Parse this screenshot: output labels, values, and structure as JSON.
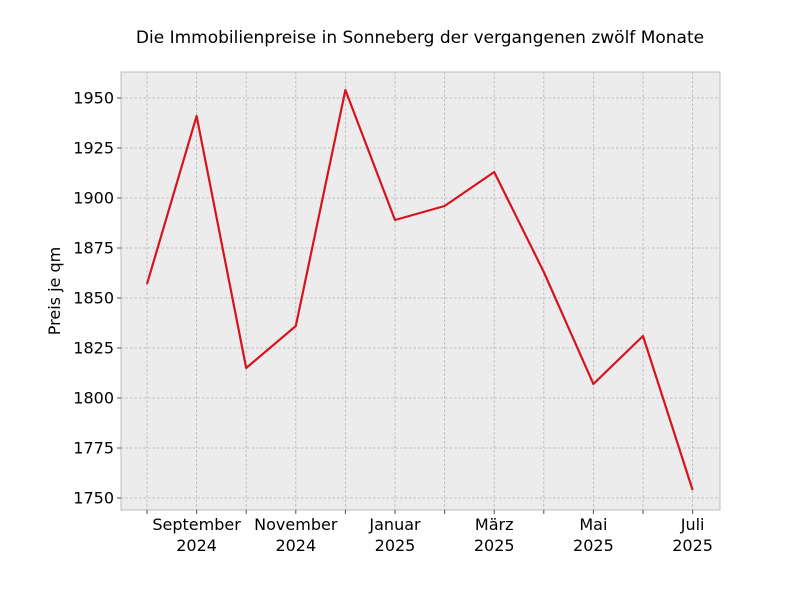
{
  "chart_data": {
    "type": "line",
    "title": "Die Immobilienpreise in Sonneberg der vergangenen zwölf Monate",
    "xlabel": "",
    "ylabel": "Preis je qm",
    "x": [
      "2024-08",
      "2024-09",
      "2024-10",
      "2024-11",
      "2024-12",
      "2025-01",
      "2025-02",
      "2025-03",
      "2025-04",
      "2025-05",
      "2025-06",
      "2025-07"
    ],
    "xticks": [
      {
        "x": "2024-09",
        "line1": "September",
        "line2": "2024"
      },
      {
        "x": "2024-11",
        "line1": "November",
        "line2": "2024"
      },
      {
        "x": "2025-01",
        "line1": "Januar",
        "line2": "2025"
      },
      {
        "x": "2025-03",
        "line1": "März",
        "line2": "2025"
      },
      {
        "x": "2025-05",
        "line1": "Mai",
        "line2": "2025"
      },
      {
        "x": "2025-07",
        "line1": "Juli",
        "line2": "2025"
      }
    ],
    "yticks": [
      1750,
      1775,
      1800,
      1825,
      1850,
      1875,
      1900,
      1925,
      1950
    ],
    "ylim": [
      1744,
      1963
    ],
    "grid": true,
    "series": [
      {
        "color": "#d7141e",
        "values": [
          1857,
          1941,
          1815,
          1836,
          1954,
          1889,
          1896,
          1913,
          1863,
          1807,
          1831,
          1754
        ]
      }
    ]
  },
  "colors": {
    "plot_background": "#ececec",
    "grid": "#b3b3b3",
    "frame": "#bcbcbc"
  }
}
